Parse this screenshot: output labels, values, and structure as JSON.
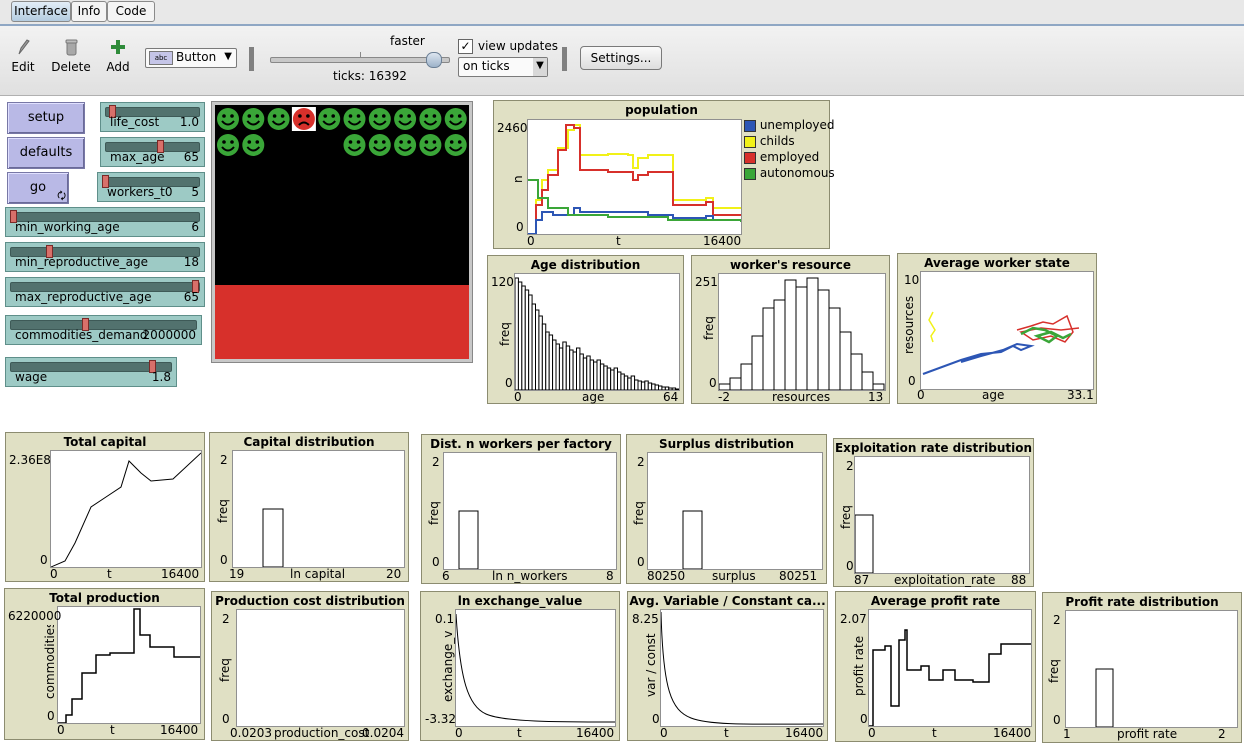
{
  "tabs": [
    {
      "label": "Interface"
    },
    {
      "label": "Info"
    },
    {
      "label": "Code"
    }
  ],
  "toolbar": {
    "edit_label": "Edit",
    "delete_label": "Delete",
    "add_label": "Add",
    "widget_type": "Button",
    "speed_label": "faster",
    "speed_fraction": 0.95,
    "ticks_text": "ticks: 16392",
    "view_updates_label": "view updates",
    "view_updates_checked": true,
    "update_mode": "on ticks",
    "settings_label": "Settings..."
  },
  "buttons": {
    "setup": "setup",
    "defaults": "defaults",
    "go": "go"
  },
  "sliders": [
    {
      "name": "life_cost",
      "value": "1.0",
      "fraction": 0.05
    },
    {
      "name": "max_age",
      "value": "65",
      "fraction": 0.6
    },
    {
      "name": "workers_t0",
      "value": "5",
      "fraction": 0.0
    },
    {
      "name": "min_working_age",
      "value": "6",
      "fraction": 0.0
    },
    {
      "name": "min_reproductive_age",
      "value": "18",
      "fraction": 0.2
    },
    {
      "name": "max_reproductive_age",
      "value": "65",
      "fraction": 1.0
    },
    {
      "name": "commodities_demand",
      "value": "2000000",
      "fraction": 0.4
    },
    {
      "name": "wage",
      "value": "1.8",
      "fraction": 0.9
    }
  ],
  "world": {
    "background": "#000000",
    "ground_color": "#d7302b",
    "happy_color": "#3aa638",
    "sad_color": "#d7302b",
    "row1": [
      "happy",
      "happy",
      "happy",
      "sad",
      "happy",
      "happy",
      "happy",
      "happy",
      "happy",
      "happy"
    ],
    "row2": [
      "happy",
      "happy",
      "none",
      "none",
      "none",
      "happy",
      "happy",
      "happy",
      "happy",
      "happy"
    ]
  },
  "plots": {
    "population": {
      "title": "population",
      "ymax": "2460",
      "ymin": "0",
      "xmin": "0",
      "xmax": "16400",
      "xlabel": "t",
      "ylabel": "n",
      "legend": [
        {
          "name": "unemployed",
          "color": "#2d56b5"
        },
        {
          "name": "childs",
          "color": "#f1f118"
        },
        {
          "name": "employed",
          "color": "#d7302b"
        },
        {
          "name": "autonomous",
          "color": "#3aa638"
        }
      ]
    },
    "age_dist": {
      "title": "Age distribution",
      "ymax": "120",
      "ymin": "0",
      "xmin": "0",
      "xmax": "64",
      "xlabel": "age",
      "ylabel": "freq"
    },
    "resource_dist": {
      "title": "worker's resource distribut...",
      "ymax": "251",
      "ymin": "0",
      "xmin": "-2",
      "xmax": "13",
      "xlabel": "resources",
      "ylabel": "freq"
    },
    "avg_worker": {
      "title": "Average worker state",
      "ymax": "10",
      "ymin": "0",
      "xmin": "0",
      "xmax": "33.1",
      "xlabel": "age",
      "ylabel": "resources"
    },
    "total_capital": {
      "title": "Total capital",
      "ymax": "2.36E8",
      "ymin": "0",
      "xmin": "0",
      "xmax": "16400",
      "xlabel": "t",
      "ylabel": ""
    },
    "capital_dist": {
      "title": "Capital distribution",
      "ymax": "2",
      "ymin": "0",
      "xmin": "19",
      "xmax": "20",
      "xlabel": "ln capital",
      "ylabel": "freq"
    },
    "workers_dist": {
      "title": "Dist. n workers per factory",
      "ymax": "2",
      "ymin": "0",
      "xmin": "6",
      "xmax": "8",
      "xlabel": "ln n_workers",
      "ylabel": "freq"
    },
    "surplus_dist": {
      "title": "Surplus distribution",
      "ymax": "2",
      "ymin": "0",
      "xmin": "80250",
      "xmax": "80251",
      "xlabel": "surplus",
      "ylabel": "freq"
    },
    "exploit_dist": {
      "title": "Exploitation rate distribution",
      "ymax": "2",
      "ymin": "0",
      "xmin": "87",
      "xmax": "88",
      "xlabel": "exploitation_rate",
      "ylabel": "freq"
    },
    "total_production": {
      "title": "Total production",
      "ymax": "6220000",
      "ymin": "0",
      "xmin": "0",
      "xmax": "16400",
      "xlabel": "t",
      "ylabel": "commodities"
    },
    "prodcost_dist": {
      "title": "Production cost distribution",
      "ymax": "2",
      "ymin": "0",
      "xmin": "0.0203",
      "xmax": "0.0204",
      "xlabel": "production_cost",
      "ylabel": "freq"
    },
    "exchange": {
      "title": "ln exchange_value",
      "ymax": "0.1",
      "ymin": "-3.32",
      "xmin": "0",
      "xmax": "16400",
      "xlabel": "t",
      "ylabel": "exchange_v"
    },
    "varconst": {
      "title": "Avg. Variable / Constant ca...",
      "ymax": "8.25",
      "ymin": "0",
      "xmin": "0",
      "xmax": "16400",
      "xlabel": "t",
      "ylabel": "var / const"
    },
    "profit_rate": {
      "title": "Average profit rate",
      "ymax": "2.07",
      "ymin": "0",
      "xmin": "0",
      "xmax": "16400",
      "xlabel": "t",
      "ylabel": "profit rate"
    },
    "profit_dist": {
      "title": "Profit rate distribution",
      "ymax": "2",
      "ymin": "0",
      "xmin": "1",
      "xmax": "2",
      "xlabel": "profit rate",
      "ylabel": "freq"
    }
  }
}
